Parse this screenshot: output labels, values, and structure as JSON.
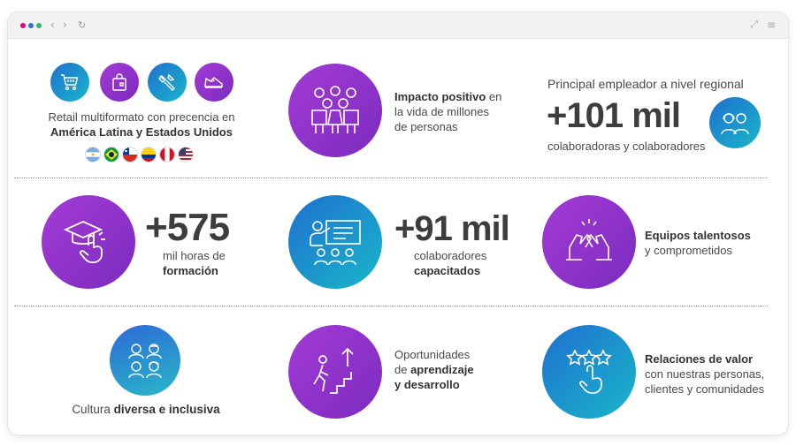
{
  "window": {
    "controls": [
      "close",
      "minimize",
      "maximize"
    ]
  },
  "nav": {
    "back": "‹",
    "forward": "›",
    "reload": "↻",
    "expand": "⤢",
    "menu": "≡"
  },
  "colors": {
    "purple": "#9a35d0",
    "teal": "#1ea7c9",
    "text": "#4a4a4a"
  },
  "retail": {
    "icons": [
      "cart-icon",
      "shopping-bag-icon",
      "tools-icon",
      "sneaker-icon"
    ],
    "line1": "Retail multiformato con precencia en",
    "line2": "América Latina y Estados Unidos",
    "flags": [
      "Argentina",
      "Brasil",
      "Chile",
      "Colombia",
      "Perú",
      "Estados Unidos"
    ]
  },
  "impacto": {
    "bold": "Impacto positivo",
    "rest1": " en",
    "line2": "la vida de millones",
    "line3": "de personas",
    "icon": "people-group-icon"
  },
  "empleador": {
    "headline": "Principal empleador a nivel regional",
    "number": "+101 mil",
    "caption": "colaboradoras y colaboradores",
    "icon": "woman-man-icon"
  },
  "horas": {
    "number": "+575",
    "line1": "mil horas de",
    "line2": "formación",
    "icon": "graduation-tap-icon"
  },
  "capacitados": {
    "number": "+91 mil",
    "line1": "colaboradores",
    "line2": "capacitados",
    "icon": "presentation-icon"
  },
  "equipos": {
    "line1": "Equipos talentosos",
    "line2": "y comprometidos",
    "icon": "high-five-icon"
  },
  "cultura": {
    "prefix": "Cultura ",
    "bold": "diversa e inclusiva",
    "icon": "diverse-people-icon"
  },
  "oportunidades": {
    "line1": "Oportunidades",
    "line2pre": "de ",
    "line2bold": "aprendizaje",
    "line3": "y desarrollo",
    "icon": "stairs-growth-icon"
  },
  "relaciones": {
    "line1": "Relaciones de valor",
    "line2": "con nuestras personas,",
    "line3": "clientes y comunidades",
    "icon": "stars-hand-icon"
  }
}
